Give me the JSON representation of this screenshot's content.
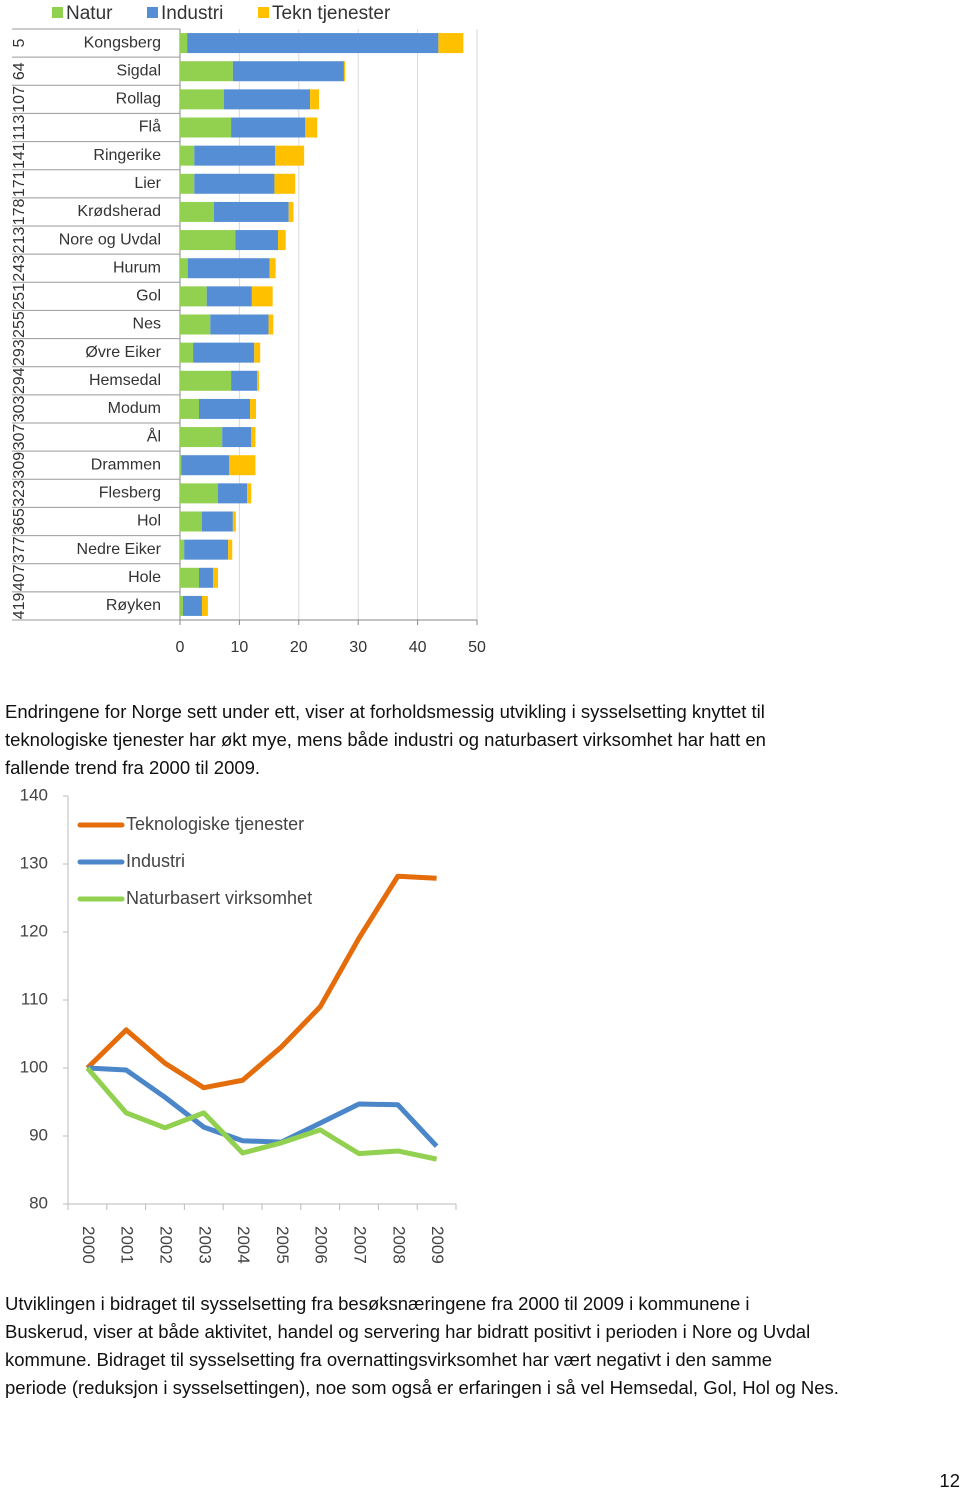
{
  "chart_data": [
    {
      "type": "bar",
      "orientation": "horizontal",
      "stacked": true,
      "categories": [
        "Kongsberg",
        "Sigdal",
        "Rollag",
        "Flå",
        "Ringerike",
        "Lier",
        "Krødsherad",
        "Nore og Uvdal",
        "Hurum",
        "Gol",
        "Nes",
        "Øvre Eiker",
        "Hemsedal",
        "Modum",
        "Ål",
        "Drammen",
        "Flesberg",
        "Hol",
        "Nedre Eiker",
        "Hole",
        "Røyken"
      ],
      "ranks": [
        5,
        64,
        107,
        113,
        141,
        171,
        178,
        213,
        243,
        251,
        255,
        293,
        294,
        303,
        307,
        309,
        323,
        365,
        377,
        407,
        419
      ],
      "series": [
        {
          "name": "Natur",
          "color": "#92d050",
          "values": [
            1.2,
            8.9,
            7.4,
            8.6,
            2.4,
            2.4,
            5.7,
            9.3,
            1.3,
            4.5,
            5.1,
            2.2,
            8.6,
            3.2,
            7.1,
            0.2,
            6.4,
            3.7,
            0.7,
            3.2,
            0.5
          ]
        },
        {
          "name": "Industri",
          "color": "#558ed5",
          "values": [
            42.3,
            18.7,
            14.5,
            12.5,
            13.6,
            13.5,
            12.6,
            7.2,
            13.8,
            7.6,
            9.8,
            10.3,
            4.4,
            8.6,
            4.9,
            8.1,
            4.9,
            5.2,
            7.4,
            2.4,
            3.2
          ]
        },
        {
          "name": "Tekn tjenester",
          "color": "#ffc000",
          "values": [
            4.2,
            0.2,
            1.5,
            2.0,
            4.9,
            3.5,
            0.8,
            1.3,
            1.0,
            3.5,
            0.8,
            1.0,
            0.3,
            1.0,
            0.7,
            4.4,
            0.7,
            0.5,
            0.7,
            0.8,
            1.0
          ]
        }
      ],
      "xlim": [
        0,
        50
      ],
      "xticks": [
        0,
        10,
        20,
        30,
        40,
        50
      ],
      "grid": true,
      "legend": "top"
    },
    {
      "type": "line",
      "categories": [
        "2000",
        "2001",
        "2002",
        "2003",
        "2004",
        "2005",
        "2006",
        "2007",
        "2008",
        "2009"
      ],
      "series": [
        {
          "name": "Teknologiske tjenester",
          "color": "#e46c0a",
          "values": [
            100,
            105.6,
            100.7,
            97.1,
            98.2,
            103.1,
            109.0,
            119.1,
            128.2,
            127.9
          ]
        },
        {
          "name": "Industri",
          "color": "#4a86c8",
          "values": [
            100,
            99.7,
            95.7,
            91.3,
            89.3,
            89.1,
            91.9,
            94.7,
            94.6,
            88.5
          ]
        },
        {
          "name": "Naturbasert virksomhet",
          "color": "#92d050",
          "values": [
            100,
            93.4,
            91.2,
            93.4,
            87.5,
            89.0,
            90.9,
            87.4,
            87.8,
            86.6
          ]
        }
      ],
      "ylim": [
        80,
        140
      ],
      "yticks": [
        80,
        90,
        100,
        110,
        120,
        130,
        140
      ],
      "grid": false,
      "legend": "top-left"
    }
  ],
  "paragraphs": [
    [
      "Endringene for Norge sett under ett, viser at forholdsmessig utvikling i sysselsetting knyttet til",
      "teknologiske tjenester har økt mye, mens både industri og naturbasert virksomhet har hatt en",
      "fallende trend fra 2000 til 2009."
    ],
    [
      "Utviklingen i bidraget til sysselsetting fra besøksnæringene fra 2000 til 2009 i kommunene i",
      "Buskerud, viser at både aktivitet, handel og servering har bidratt positivt i perioden i Nore og Uvdal",
      "kommune. Bidraget til sysselsetting fra overnattingsvirksomhet har vært negativt i den samme",
      "periode (reduksjon i sysselsettingen), noe som også er erfaringen i så vel Hemsedal, Gol, Hol og Nes."
    ]
  ],
  "page_number": 12
}
